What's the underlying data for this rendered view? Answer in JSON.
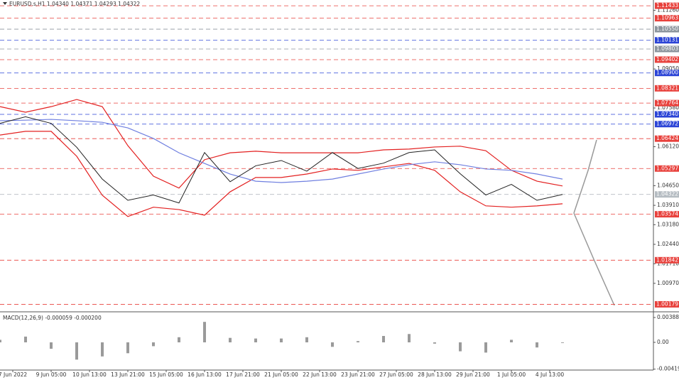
{
  "chart_data": [
    {
      "type": "line",
      "title": "EURUSD.s,H1  1.04340 1.04371 1.04293 1.04322",
      "ylim": [
        0.9995,
        1.1165
      ],
      "yticks": [
        {
          "value": 1.1126,
          "label": "1.11260"
        },
        {
          "value": 1.0905,
          "label": "1.09050"
        },
        {
          "value": 1.0758,
          "label": "1.07580"
        },
        {
          "value": 1.0612,
          "label": "1.06120"
        },
        {
          "value": 1.0465,
          "label": "1.04650"
        },
        {
          "value": 1.0391,
          "label": "1.03910"
        },
        {
          "value": 1.0318,
          "label": "1.03180"
        },
        {
          "value": 1.0244,
          "label": "1.02440"
        },
        {
          "value": 1.0171,
          "label": "1.01710"
        },
        {
          "value": 1.0097,
          "label": "1.00970"
        }
      ],
      "levels": [
        {
          "value": 1.11433,
          "label": "1.11433",
          "color": "#e8413c"
        },
        {
          "value": 1.10963,
          "label": "1.10963",
          "color": "#e8413c"
        },
        {
          "value": 1.1055,
          "label": "1.10550",
          "color": "#8c959d"
        },
        {
          "value": 1.10131,
          "label": "1.10131",
          "color": "#2b44d6"
        },
        {
          "value": 1.09803,
          "label": "1.09803",
          "color": "#8c959d"
        },
        {
          "value": 1.09402,
          "label": "1.09402",
          "color": "#e8413c"
        },
        {
          "value": 1.089,
          "label": "1.08900",
          "color": "#2b44d6"
        },
        {
          "value": 1.08321,
          "label": "1.08321",
          "color": "#e8413c"
        },
        {
          "value": 1.07764,
          "label": "1.07764",
          "color": "#e8413c"
        },
        {
          "value": 1.0734,
          "label": "1.07340",
          "color": "#2b44d6"
        },
        {
          "value": 1.06972,
          "label": "1.06972",
          "color": "#2b44d6"
        },
        {
          "value": 1.06424,
          "label": "1.06424",
          "color": "#e8413c"
        },
        {
          "value": 1.05297,
          "label": "1.05297",
          "color": "#e8413c"
        },
        {
          "value": 1.04322,
          "label": "1.04322",
          "color": "#b5bcc2"
        },
        {
          "value": 1.03574,
          "label": "1.03574",
          "color": "#e8413c"
        },
        {
          "value": 1.01842,
          "label": "1.01842",
          "color": "#e8413c"
        },
        {
          "value": 1.00179,
          "label": "1.00179",
          "color": "#e8413c"
        }
      ],
      "x_labels": [
        "7 Jun 2022",
        "9 Jun 05:00",
        "10 Jun 13:00",
        "13 Jun 21:00",
        "15 Jun 05:00",
        "16 Jun 13:00",
        "17 Jun 21:00",
        "21 Jun 05:00",
        "22 Jun 13:00",
        "23 Jun 21:00",
        "27 Jun 05:00",
        "28 Jun 13:00",
        "29 Jun 21:00",
        "1 Jul 05:00",
        "4 Jul 13:00"
      ],
      "series": [
        {
          "color": "#e32020",
          "values": [
            1.0763,
            1.0742,
            1.0763,
            1.079,
            1.0763,
            1.0616,
            1.0501,
            1.0456,
            1.0563,
            1.0589,
            1.0595,
            1.0589,
            1.0589,
            1.0589,
            1.0589,
            1.06,
            1.0603,
            1.0611,
            1.0614,
            1.0597,
            1.0523,
            1.0482,
            1.0464
          ]
        },
        {
          "color": "#e32020",
          "values": [
            1.0656,
            1.067,
            1.067,
            1.0576,
            1.0429,
            1.0349,
            1.0384,
            1.0375,
            1.0354,
            1.0442,
            1.0496,
            1.0496,
            1.0509,
            1.0528,
            1.0523,
            1.0536,
            1.0549,
            1.0523,
            1.0442,
            1.0389,
            1.0384,
            1.0389,
            1.0397
          ]
        },
        {
          "color": "#6f7fe0",
          "values": [
            1.071,
            1.0712,
            1.0715,
            1.071,
            1.0704,
            1.0683,
            1.0643,
            1.0589,
            1.0549,
            1.0509,
            1.0482,
            1.0477,
            1.0482,
            1.049,
            1.0509,
            1.0528,
            1.0544,
            1.0555,
            1.0544,
            1.0528,
            1.0523,
            1.0509,
            1.049
          ]
        },
        {
          "color": "#222222",
          "values": [
            1.07,
            1.0725,
            1.07,
            1.061,
            1.049,
            1.041,
            1.043,
            1.04,
            1.059,
            1.048,
            1.054,
            1.056,
            1.052,
            1.059,
            1.053,
            1.055,
            1.059,
            1.06,
            1.051,
            1.043,
            1.047,
            1.041,
            1.0432
          ]
        }
      ]
    },
    {
      "type": "bar",
      "title": "MACD(12,26,9) -0.000059 -0.000200",
      "ylim": [
        -0.00433,
        0.00444
      ],
      "yticks": [
        0.003884,
        {
          "value": 0,
          "label": "0.00"
        },
        -0.004191
      ],
      "color": "#9a9a9a",
      "values": [
        0.0004,
        0.0009,
        -0.001,
        -0.0027,
        -0.0022,
        -0.0017,
        -0.0006,
        0.0008,
        0.0032,
        0.0007,
        0.0006,
        0.0006,
        0.0008,
        -0.0007,
        0.0002,
        0.001,
        0.0013,
        -0.0002,
        -0.0014,
        -0.0016,
        0.0004,
        -0.0008,
        -0.0001
      ]
    }
  ]
}
